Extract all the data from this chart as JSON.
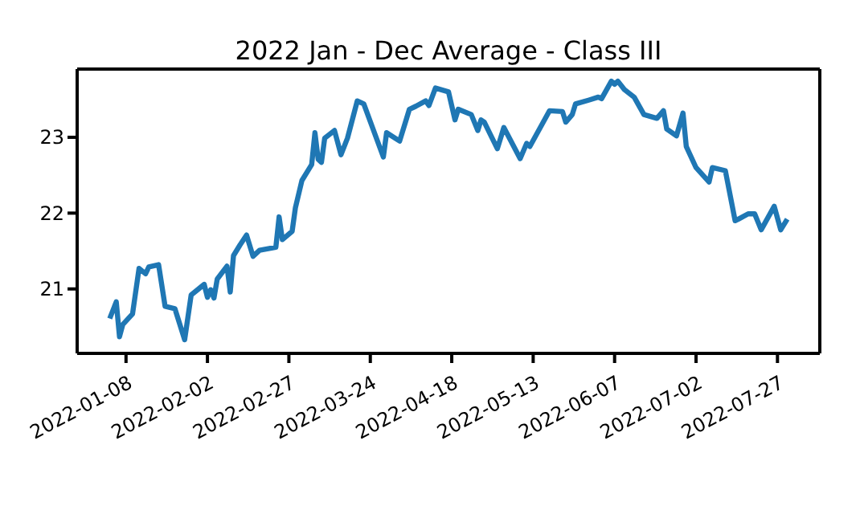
{
  "chart_data": {
    "type": "line",
    "title": "2022 Jan - Dec Average - Class III",
    "x": [
      "2022-01-03",
      "2022-01-05",
      "2022-01-06",
      "2022-01-07",
      "2022-01-10",
      "2022-01-12",
      "2022-01-14",
      "2022-01-15",
      "2022-01-18",
      "2022-01-20",
      "2022-01-23",
      "2022-01-26",
      "2022-01-28",
      "2022-02-01",
      "2022-02-02",
      "2022-02-03",
      "2022-02-04",
      "2022-02-05",
      "2022-02-08",
      "2022-02-09",
      "2022-02-10",
      "2022-02-12",
      "2022-02-14",
      "2022-02-16",
      "2022-02-18",
      "2022-02-23",
      "2022-02-24",
      "2022-02-25",
      "2022-02-28",
      "2022-03-01",
      "2022-03-03",
      "2022-03-06",
      "2022-03-07",
      "2022-03-08",
      "2022-03-09",
      "2022-03-10",
      "2022-03-13",
      "2022-03-15",
      "2022-03-17",
      "2022-03-20",
      "2022-03-22",
      "2022-03-28",
      "2022-03-29",
      "2022-04-02",
      "2022-04-05",
      "2022-04-07",
      "2022-04-10",
      "2022-04-11",
      "2022-04-13",
      "2022-04-17",
      "2022-04-19",
      "2022-04-20",
      "2022-04-24",
      "2022-04-26",
      "2022-04-27",
      "2022-04-28",
      "2022-05-02",
      "2022-05-04",
      "2022-05-09",
      "2022-05-11",
      "2022-05-12",
      "2022-05-18",
      "2022-05-22",
      "2022-05-23",
      "2022-05-25",
      "2022-05-26",
      "2022-05-30",
      "2022-06-02",
      "2022-06-03",
      "2022-06-06",
      "2022-06-07",
      "2022-06-08",
      "2022-06-10",
      "2022-06-13",
      "2022-06-16",
      "2022-06-20",
      "2022-06-22",
      "2022-06-23",
      "2022-06-26",
      "2022-06-28",
      "2022-06-29",
      "2022-07-02",
      "2022-07-06",
      "2022-07-07",
      "2022-07-11",
      "2022-07-14",
      "2022-07-15",
      "2022-07-18",
      "2022-07-20",
      "2022-07-22",
      "2022-07-26",
      "2022-07-28",
      "2022-07-30"
    ],
    "series": [
      {
        "color": "#1f77b4",
        "values": [
          20.61,
          20.83,
          20.37,
          20.53,
          20.67,
          21.27,
          21.2,
          21.29,
          21.32,
          20.77,
          20.74,
          20.33,
          20.92,
          21.06,
          20.89,
          20.99,
          20.88,
          21.13,
          21.3,
          20.96,
          21.44,
          21.58,
          21.71,
          21.43,
          21.51,
          21.55,
          21.95,
          21.65,
          21.76,
          22.07,
          22.43,
          22.64,
          23.06,
          22.71,
          22.67,
          22.99,
          23.09,
          22.77,
          22.99,
          23.48,
          23.44,
          22.74,
          23.06,
          22.95,
          23.37,
          23.41,
          23.48,
          23.42,
          23.65,
          23.6,
          23.23,
          23.37,
          23.3,
          23.09,
          23.23,
          23.2,
          22.85,
          23.13,
          22.72,
          22.92,
          22.88,
          23.35,
          23.34,
          23.2,
          23.3,
          23.44,
          23.49,
          23.53,
          23.51,
          23.74,
          23.7,
          23.74,
          23.63,
          23.53,
          23.3,
          23.25,
          23.35,
          23.11,
          23.02,
          23.32,
          22.88,
          22.6,
          22.41,
          22.6,
          22.56,
          21.9,
          21.92,
          21.99,
          21.99,
          21.78,
          22.09,
          21.78,
          21.92
        ]
      }
    ],
    "xlim": [
      "2021-12-24",
      "2022-08-09"
    ],
    "xticks": [
      "2022-01-08",
      "2022-02-02",
      "2022-02-27",
      "2022-03-24",
      "2022-04-18",
      "2022-05-13",
      "2022-06-07",
      "2022-07-02",
      "2022-07-27"
    ],
    "ylim": [
      20.15,
      23.9
    ],
    "yticks": [
      21,
      22,
      23
    ],
    "grid": false,
    "legend": false,
    "marker": "none",
    "line_style": "solid"
  }
}
